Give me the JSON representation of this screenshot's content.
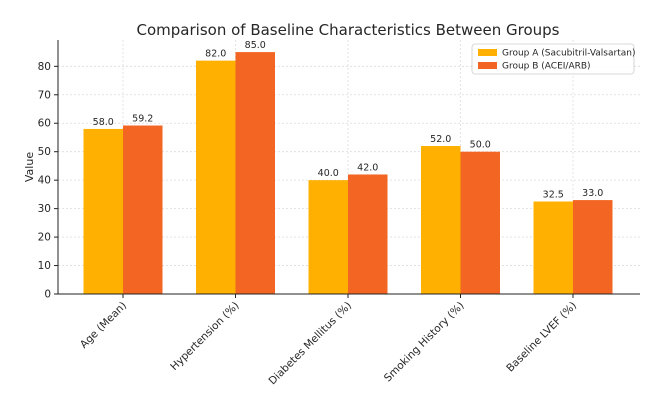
{
  "chart_data": {
    "type": "bar",
    "title": "Comparison of Baseline Characteristics Between Groups",
    "xlabel": "",
    "ylabel": "Value",
    "ylim": [
      0,
      89.25
    ],
    "yticks": [
      0,
      10,
      20,
      30,
      40,
      50,
      60,
      70,
      80
    ],
    "grid": true,
    "legend_position": "top-right",
    "categories": [
      "Age (Mean)",
      "Hypertension (%)",
      "Diabetes Mellitus (%)",
      "Smoking History (%)",
      "Baseline LVEF (%)"
    ],
    "series": [
      {
        "name": "Group A (Sacubitril-Valsartan)",
        "color": "#FFB000",
        "values": [
          58.0,
          82.0,
          40.0,
          52.0,
          32.5
        ],
        "labels": [
          "58.0",
          "82.0",
          "40.0",
          "52.0",
          "32.5"
        ]
      },
      {
        "name": "Group B (ACEI/ARB)",
        "color": "#F26522",
        "values": [
          59.2,
          85.0,
          42.0,
          50.0,
          33.0
        ],
        "labels": [
          "59.2",
          "85.0",
          "42.0",
          "50.0",
          "33.0"
        ]
      }
    ]
  }
}
